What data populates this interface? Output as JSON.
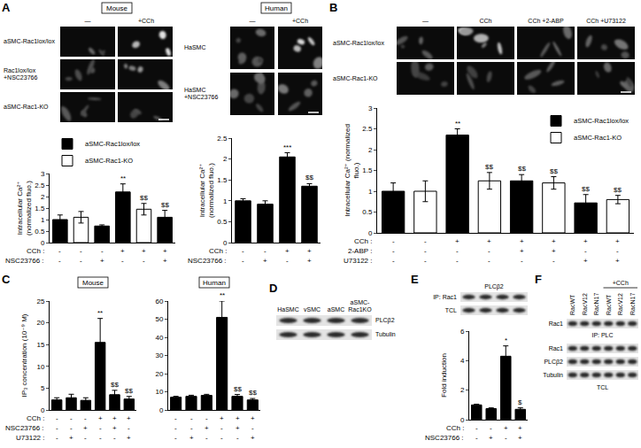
{
  "figure": {
    "A": {
      "letter": "A",
      "mouse": {
        "header": "Mouse",
        "columns": [
          "—",
          "+CCh"
        ],
        "rows": [
          "aSMC-Rac1lox/lox",
          "Rac1lox/lox +NSC23766",
          "aSMC-Rac1-KO"
        ]
      },
      "human": {
        "header": "Human",
        "columns": [
          "—",
          "+CCh"
        ],
        "rows": [
          "HaSMC",
          "HaSMC +NSC23766"
        ]
      }
    },
    "B": {
      "letter": "B",
      "columns": [
        "—",
        "CCh",
        "CCh +2-ABP",
        "CCh +U73122"
      ],
      "rows": [
        "aSMC-Rac1lox/lox",
        "aSMC-Rac1-KO"
      ]
    },
    "C": {
      "letter": "C",
      "headers": [
        "Mouse",
        "Human"
      ]
    },
    "D": {
      "letter": "D",
      "lanes": [
        "HaSMC",
        "vSMC",
        "aSMC",
        "aSMC-Rac1KO"
      ],
      "rows": [
        "PLCβ2",
        "Tubulin"
      ]
    },
    "E": {
      "letter": "E",
      "title": "PLCβ2",
      "rows": [
        "IP: Rac1",
        "TCL"
      ]
    },
    "F": {
      "letter": "F",
      "treatment": "+CCh",
      "lanes": [
        "RacWT",
        "RacV12",
        "RacN17",
        "RacWT",
        "RacV12",
        "RacN17"
      ],
      "ip_rows": [
        "Rac1"
      ],
      "ip_label": "IP: PLC",
      "tcl_rows": [
        "Rac1",
        "PLCβ2",
        "Tubulin"
      ],
      "tcl_label": "TCL"
    }
  },
  "chart_data": [
    {
      "type": "bar",
      "ylabel": "Intracellular Ca²⁺ (normalized fluo.)",
      "categories": [
        null,
        null,
        null,
        null,
        null,
        null
      ],
      "series": [
        {
          "name": "aSMC-Rac1lox/lox",
          "color": "#000000",
          "values": [
            1.0,
            null,
            0.72,
            2.2,
            null,
            1.1
          ],
          "errors": [
            0.2,
            null,
            0.05,
            0.35,
            null,
            0.3
          ]
        },
        {
          "name": "aSMC-Rac1-KO",
          "color": "#ffffff",
          "values": [
            null,
            1.1,
            null,
            null,
            1.45,
            null
          ],
          "errors": [
            null,
            0.25,
            null,
            null,
            0.25,
            null
          ]
        }
      ],
      "marks": [
        null,
        null,
        null,
        "**",
        "$$",
        "$$"
      ],
      "conditions": [
        {
          "label": "CCh :",
          "values": [
            "-",
            "-",
            "-",
            "+",
            "+",
            "+"
          ]
        },
        {
          "label": "NSC23766 :",
          "values": [
            "-",
            "-",
            "+",
            "-",
            "-",
            "+"
          ]
        }
      ],
      "ylim": [
        0,
        3
      ],
      "yticks": [
        0,
        0.5,
        1,
        1.5,
        2,
        2.5,
        3
      ],
      "grid": false,
      "legend": "top",
      "tick_labels": "y"
    },
    {
      "type": "bar",
      "ylabel": "Intracellular Ca²⁺ (normalized fluo.)",
      "categories": [
        null,
        null,
        null,
        null
      ],
      "values": [
        1.0,
        0.92,
        2.05,
        1.35
      ],
      "errors": [
        0.05,
        0.08,
        0.1,
        0.06
      ],
      "color": "#000000",
      "marks": [
        null,
        null,
        "***",
        "$$"
      ],
      "conditions": [
        {
          "label": "CCh :",
          "values": [
            "-",
            "-",
            "+",
            "+"
          ]
        },
        {
          "label": "NSC23766 :",
          "values": [
            "-",
            "+",
            "-",
            "+"
          ]
        }
      ],
      "ylim": [
        0,
        2.5
      ],
      "yticks": [
        0,
        0.5,
        1,
        1.5,
        2,
        2.5
      ],
      "grid": false,
      "tick_labels": "y"
    },
    {
      "type": "bar",
      "ylabel": "Intracellular Ca²⁺ (normalized fluo.)",
      "categories": [
        null,
        null,
        null,
        null,
        null,
        null,
        null,
        null
      ],
      "series": [
        {
          "name": "aSMC-Rac1lox/lox",
          "color": "#000000",
          "values": [
            1.0,
            null,
            2.35,
            null,
            1.25,
            null,
            0.72,
            null
          ],
          "errors": [
            0.2,
            null,
            0.15,
            null,
            0.15,
            null,
            0.2,
            null
          ]
        },
        {
          "name": "aSMC-Rac1-KO",
          "color": "#ffffff",
          "values": [
            null,
            1.0,
            null,
            1.25,
            null,
            1.2,
            null,
            0.8
          ],
          "errors": [
            null,
            0.25,
            null,
            0.2,
            null,
            0.15,
            null,
            0.1
          ]
        }
      ],
      "marks": [
        null,
        null,
        "**",
        "$$",
        "$$",
        "$$",
        "$$",
        "$$"
      ],
      "conditions": [
        {
          "label": "CCh :",
          "values": [
            "-",
            "-",
            "+",
            "+",
            "+",
            "+",
            "+",
            "+"
          ]
        },
        {
          "label": "2-ABP :",
          "values": [
            "-",
            "-",
            "-",
            "-",
            "+",
            "+",
            "-",
            "-"
          ]
        },
        {
          "label": "U73122 :",
          "values": [
            "-",
            "-",
            "-",
            "-",
            "-",
            "-",
            "+",
            "+"
          ]
        }
      ],
      "ylim": [
        0,
        3
      ],
      "yticks": [
        0,
        0.5,
        1,
        1.5,
        2,
        2.5,
        3
      ],
      "grid": false,
      "legend": "top right",
      "tick_labels": "y"
    },
    {
      "type": "bar",
      "ylabel": "IP₃ concentration (10⁻⁹ M)",
      "categories": [
        null,
        null,
        null,
        null,
        null,
        null
      ],
      "values": [
        2.3,
        2.8,
        2.2,
        15.5,
        3.5,
        2.5
      ],
      "errors": [
        0.5,
        0.8,
        0.6,
        5.5,
        1.0,
        0.6
      ],
      "color": "#000000",
      "marks": [
        null,
        null,
        null,
        "**",
        "$$",
        "$$"
      ],
      "conditions": [
        {
          "label": "CCh :",
          "values": [
            "-",
            "-",
            "-",
            "+",
            "+",
            "+"
          ]
        },
        {
          "label": "NSC23766 :",
          "values": [
            "-",
            "-",
            "+",
            "-",
            "+",
            "-"
          ]
        },
        {
          "label": "U73122 :",
          "values": [
            "-",
            "+",
            "-",
            "-",
            "-",
            "+"
          ]
        }
      ],
      "ylim": [
        0,
        25
      ],
      "yticks": [
        0,
        5,
        10,
        15,
        20,
        25
      ],
      "grid": false,
      "tick_labels": "y"
    },
    {
      "type": "bar",
      "categories": [
        null,
        null,
        null,
        null,
        null,
        null
      ],
      "values": [
        7,
        7.5,
        8,
        51,
        7.5,
        5.5
      ],
      "errors": [
        0.5,
        0.6,
        0.6,
        9,
        1,
        0.8
      ],
      "color": "#000000",
      "marks": [
        null,
        null,
        null,
        "**",
        "$$",
        "$$"
      ],
      "conditions": [
        {
          "values": [
            "-",
            "-",
            "-",
            "+",
            "+",
            "+"
          ]
        },
        {
          "values": [
            "-",
            "-",
            "+",
            "-",
            "+",
            "-"
          ]
        },
        {
          "values": [
            "-",
            "+",
            "-",
            "-",
            "-",
            "+"
          ]
        }
      ],
      "ylim": [
        0,
        60
      ],
      "yticks": [
        0,
        10,
        20,
        30,
        40,
        50,
        60
      ],
      "grid": false,
      "tick_labels": "y"
    },
    {
      "type": "bar",
      "ylabel": "Fold induction",
      "categories": [
        null,
        null,
        null,
        null
      ],
      "values": [
        1.0,
        0.75,
        4.3,
        0.7
      ],
      "errors": [
        0.05,
        0.05,
        0.7,
        0.1
      ],
      "color": "#000000",
      "marks": [
        null,
        null,
        "*",
        "$"
      ],
      "conditions": [
        {
          "label": "CCh :",
          "values": [
            "-",
            "-",
            "+",
            "+"
          ]
        },
        {
          "label": "NSC23766 :",
          "values": [
            "-",
            "+",
            "-",
            "+"
          ]
        }
      ],
      "ylim": [
        0,
        6
      ],
      "yticks": [
        0,
        2,
        4,
        6
      ],
      "grid": false,
      "tick_labels": "y"
    }
  ]
}
